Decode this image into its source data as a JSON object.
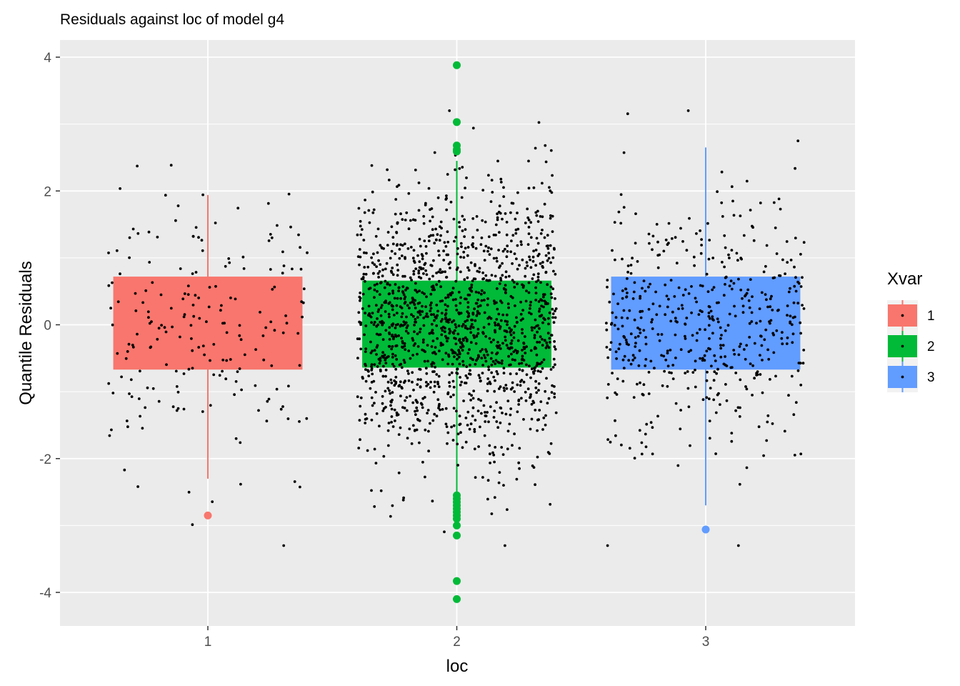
{
  "chart_data": {
    "type": "boxplot",
    "title": "Residuals against loc of model g4",
    "xlabel": "loc",
    "ylabel": "Quantile Residuals",
    "categories": [
      "1",
      "2",
      "3"
    ],
    "ylim": [
      -4.5,
      4.2
    ],
    "y_ticks": [
      -4,
      -2,
      0,
      2,
      4
    ],
    "y_tick_labels": [
      "-4",
      "-2",
      "0",
      "2",
      "4"
    ],
    "grid": true,
    "legend": {
      "title": "Xvar",
      "position": "right",
      "entries": [
        "1",
        "2",
        "3"
      ]
    },
    "colors": {
      "1": "#F8766D",
      "2": "#00BA38",
      "3": "#619CFF"
    },
    "panel_background": "#EBEBEB",
    "boxes": [
      {
        "category": "1",
        "lower_whisker": -2.3,
        "q1": -0.67,
        "median": 0.0,
        "q3": 0.72,
        "upper_whisker": 1.94,
        "outliers": [
          -2.85
        ]
      },
      {
        "category": "2",
        "lower_whisker": -2.5,
        "q1": -0.64,
        "median": 0.0,
        "q3": 0.66,
        "upper_whisker": 2.45,
        "outliers": [
          3.88,
          3.03,
          2.68,
          2.62,
          2.59,
          -2.55,
          -2.6,
          -2.65,
          -2.7,
          -2.75,
          -2.8,
          -2.85,
          -2.9,
          -3.0,
          -3.15,
          -3.83,
          -4.1
        ]
      },
      {
        "category": "3",
        "lower_whisker": -2.7,
        "q1": -0.67,
        "median": 0.0,
        "q3": 0.72,
        "upper_whisker": 2.65,
        "outliers": [
          -3.06
        ]
      }
    ],
    "jitter_points": [
      {
        "category": "1",
        "n": 200,
        "width": 0.4
      },
      {
        "category": "2",
        "n": 1500,
        "width": 0.4
      },
      {
        "category": "3",
        "n": 500,
        "width": 0.4
      }
    ]
  }
}
